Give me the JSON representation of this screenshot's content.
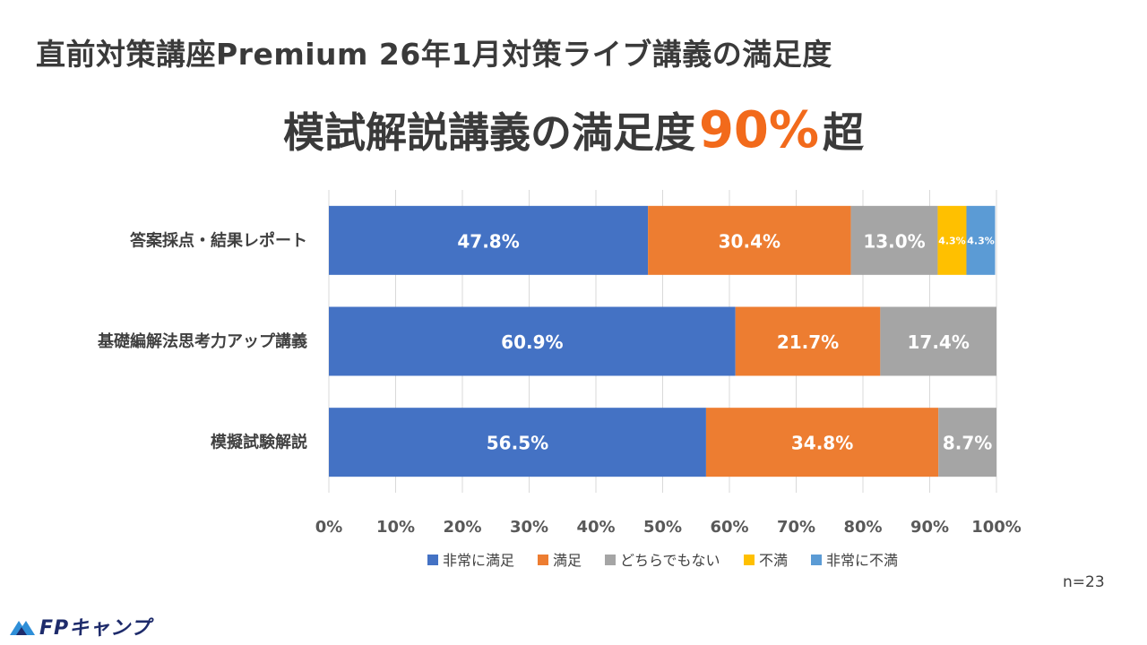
{
  "page": {
    "title": "直前対策講座Premium 26年1月対策ライブ講義の満足度",
    "headline_main": "模試解説講義の満足度",
    "headline_number": "90%",
    "headline_suffix": "超",
    "sample_size": "n=23",
    "logo_text": "FPキャンプ",
    "logo_icon": "mountain-icon"
  },
  "chart_data": {
    "type": "bar",
    "orientation": "horizontal-stacked-100",
    "categories": [
      "答案採点・結果レポート",
      "基礎編解法思考力アップ講義",
      "模擬試験解説"
    ],
    "series": [
      {
        "name": "非常に満足",
        "color": "#4472c4",
        "values": [
          47.8,
          60.9,
          56.5
        ],
        "labels": [
          "47.8%",
          "60.9%",
          "56.5%"
        ]
      },
      {
        "name": "満足",
        "color": "#ed7d31",
        "values": [
          30.4,
          21.7,
          34.8
        ],
        "labels": [
          "30.4%",
          "21.7%",
          "34.8%"
        ]
      },
      {
        "name": "どちらでもない",
        "color": "#a5a5a5",
        "values": [
          13.0,
          17.4,
          8.7
        ],
        "labels": [
          "13.0%",
          "17.4%",
          "8.7%"
        ]
      },
      {
        "name": "不満",
        "color": "#ffc000",
        "values": [
          4.3,
          0,
          0
        ],
        "labels": [
          "4.3%",
          "",
          ""
        ]
      },
      {
        "name": "非常に不満",
        "color": "#5b9bd5",
        "values": [
          4.3,
          0,
          0
        ],
        "labels": [
          "4.3%",
          "",
          ""
        ]
      }
    ],
    "xlim": [
      0,
      100
    ],
    "x_ticks": [
      "0%",
      "10%",
      "20%",
      "30%",
      "40%",
      "50%",
      "60%",
      "70%",
      "80%",
      "90%",
      "100%"
    ],
    "legend_position": "bottom"
  }
}
